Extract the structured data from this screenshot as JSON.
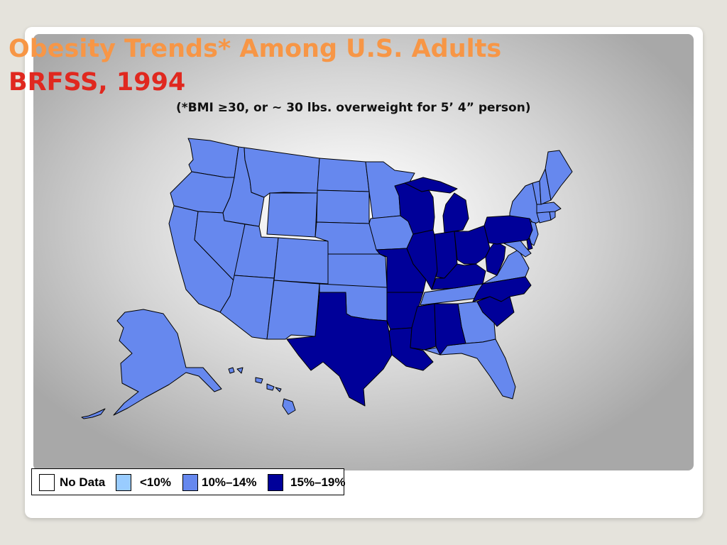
{
  "slide": {
    "title_line1": "Obesity Trends* Among U.S. Adults",
    "title_line2": "BRFSS, 1994",
    "subtitle": "(*BMI ≥30, or ~ 30 lbs. overweight for 5’ 4” person)"
  },
  "legend": {
    "items": [
      {
        "label": "No Data",
        "color": "#ffffff"
      },
      {
        "label": "<10%",
        "color": "#99ccff"
      },
      {
        "label": "10%–14%",
        "color": "#6688ee"
      },
      {
        "label": "15%–19%",
        "color": "#000099"
      }
    ]
  },
  "map": {
    "high_prevalence_states": [
      "Wisconsin",
      "Michigan",
      "Missouri",
      "Illinois",
      "Indiana",
      "Ohio",
      "Kentucky",
      "West Virginia",
      "Pennsylvania",
      "Texas",
      "Arkansas",
      "Louisiana",
      "Mississippi",
      "Alabama",
      "North Carolina",
      "South Carolina",
      "Delaware"
    ],
    "low_prevalence_states": [
      "Washington",
      "Oregon",
      "California",
      "Idaho",
      "Nevada",
      "Montana",
      "Wyoming",
      "Utah",
      "Arizona",
      "Colorado",
      "New Mexico",
      "North Dakota",
      "South Dakota",
      "Nebraska",
      "Kansas",
      "Oklahoma",
      "Minnesota",
      "Iowa",
      "Tennessee",
      "Georgia",
      "Florida",
      "Virginia",
      "Maryland",
      "New York",
      "New Jersey",
      "Connecticut",
      "Rhode Island",
      "Massachusetts",
      "Vermont",
      "New Hampshire",
      "Maine",
      "Alaska",
      "Hawaii"
    ]
  }
}
